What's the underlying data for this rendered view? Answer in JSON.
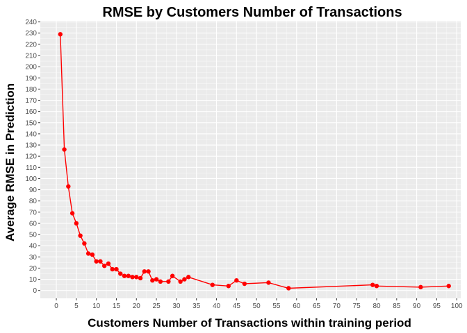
{
  "chart_data": {
    "type": "line",
    "title": "RMSE by Customers Number of Transactions",
    "xlabel": "Customers Number of Transactions within training period",
    "ylabel": "Average RMSE in Prediction",
    "xlim": [
      -4,
      101
    ],
    "ylim": [
      -7,
      241
    ],
    "x_ticks": [
      0,
      5,
      10,
      15,
      20,
      25,
      30,
      35,
      40,
      45,
      50,
      55,
      60,
      65,
      70,
      75,
      80,
      85,
      90,
      95,
      100
    ],
    "y_ticks": [
      0,
      10,
      20,
      30,
      40,
      50,
      60,
      70,
      80,
      90,
      100,
      110,
      120,
      130,
      140,
      150,
      160,
      170,
      180,
      190,
      200,
      210,
      220,
      230,
      240
    ],
    "grid": true,
    "legend": "none",
    "colors": {
      "series": "#ff0000",
      "panel": "#ebebeb",
      "grid_major": "#ffffff"
    },
    "series": [
      {
        "x": [
          1,
          2,
          3,
          4,
          5,
          6,
          7,
          8,
          9,
          10,
          11,
          12,
          13,
          14,
          15,
          16,
          17,
          18,
          19,
          20,
          21,
          22,
          23,
          24,
          25,
          26,
          28,
          29,
          31,
          32,
          33,
          39,
          43,
          45,
          47,
          53,
          58,
          79,
          80,
          91,
          98
        ],
        "y": [
          229,
          126,
          93,
          69,
          60,
          49,
          42,
          33,
          32,
          26,
          26,
          22,
          24,
          19,
          19,
          15,
          13,
          13,
          12,
          12,
          11,
          17,
          17,
          9,
          10,
          8,
          8,
          13,
          8,
          10,
          12,
          5,
          4,
          9,
          6,
          7,
          2,
          5,
          4,
          3,
          4
        ]
      }
    ]
  }
}
